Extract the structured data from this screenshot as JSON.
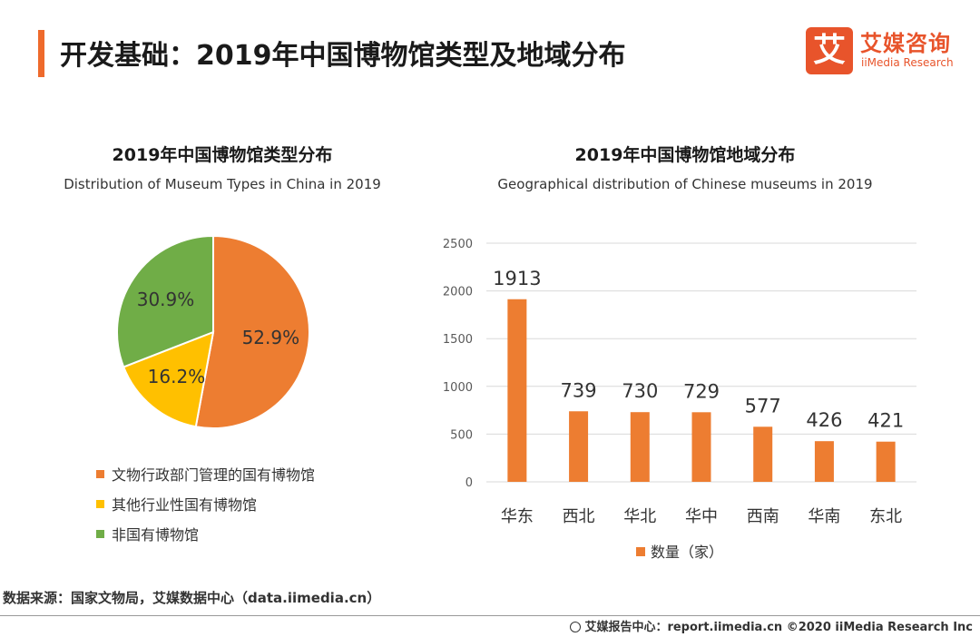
{
  "header": {
    "title": "开发基础：2019年中国博物馆类型及地域分布",
    "accent_color": "#ee6a2c",
    "logo": {
      "mark": "艾",
      "name_cn": "艾媒咨询",
      "name_en": "iiMedia Research",
      "color": "#e8542b"
    }
  },
  "chart_data": [
    {
      "type": "pie",
      "title": "2019年中国博物馆类型分布",
      "subtitle": "Distribution of Museum Types in China in 2019",
      "slices": [
        {
          "label": "文物行政部门管理的国有博物馆",
          "value": 52.9,
          "display": "52.9%",
          "color": "#ed7d31"
        },
        {
          "label": "其他行业性国有博物馆",
          "value": 16.2,
          "display": "16.2%",
          "color": "#ffc000"
        },
        {
          "label": "非国有博物馆",
          "value": 30.9,
          "display": "30.9%",
          "color": "#70ad47"
        }
      ],
      "legend_position": "bottom"
    },
    {
      "type": "bar",
      "title": "2019年中国博物馆地域分布",
      "subtitle": "Geographical distribution of Chinese museums in 2019",
      "categories": [
        "华东",
        "西北",
        "华北",
        "华中",
        "西南",
        "华南",
        "东北"
      ],
      "series": [
        {
          "name": "数量（家）",
          "values": [
            1913,
            739,
            730,
            729,
            577,
            426,
            421
          ],
          "color": "#ed7d31"
        }
      ],
      "ylim": [
        0,
        2500
      ],
      "yticks": [
        0,
        500,
        1000,
        1500,
        2000,
        2500
      ],
      "grid": true,
      "legend_position": "bottom"
    }
  ],
  "source": "数据来源：国家文物局，艾媒数据中心（data.iimedia.cn）",
  "footer": {
    "icon": "globe-icon",
    "text": "艾媒报告中心：report.iimedia.cn  ©2020  iiMedia Research  Inc"
  }
}
